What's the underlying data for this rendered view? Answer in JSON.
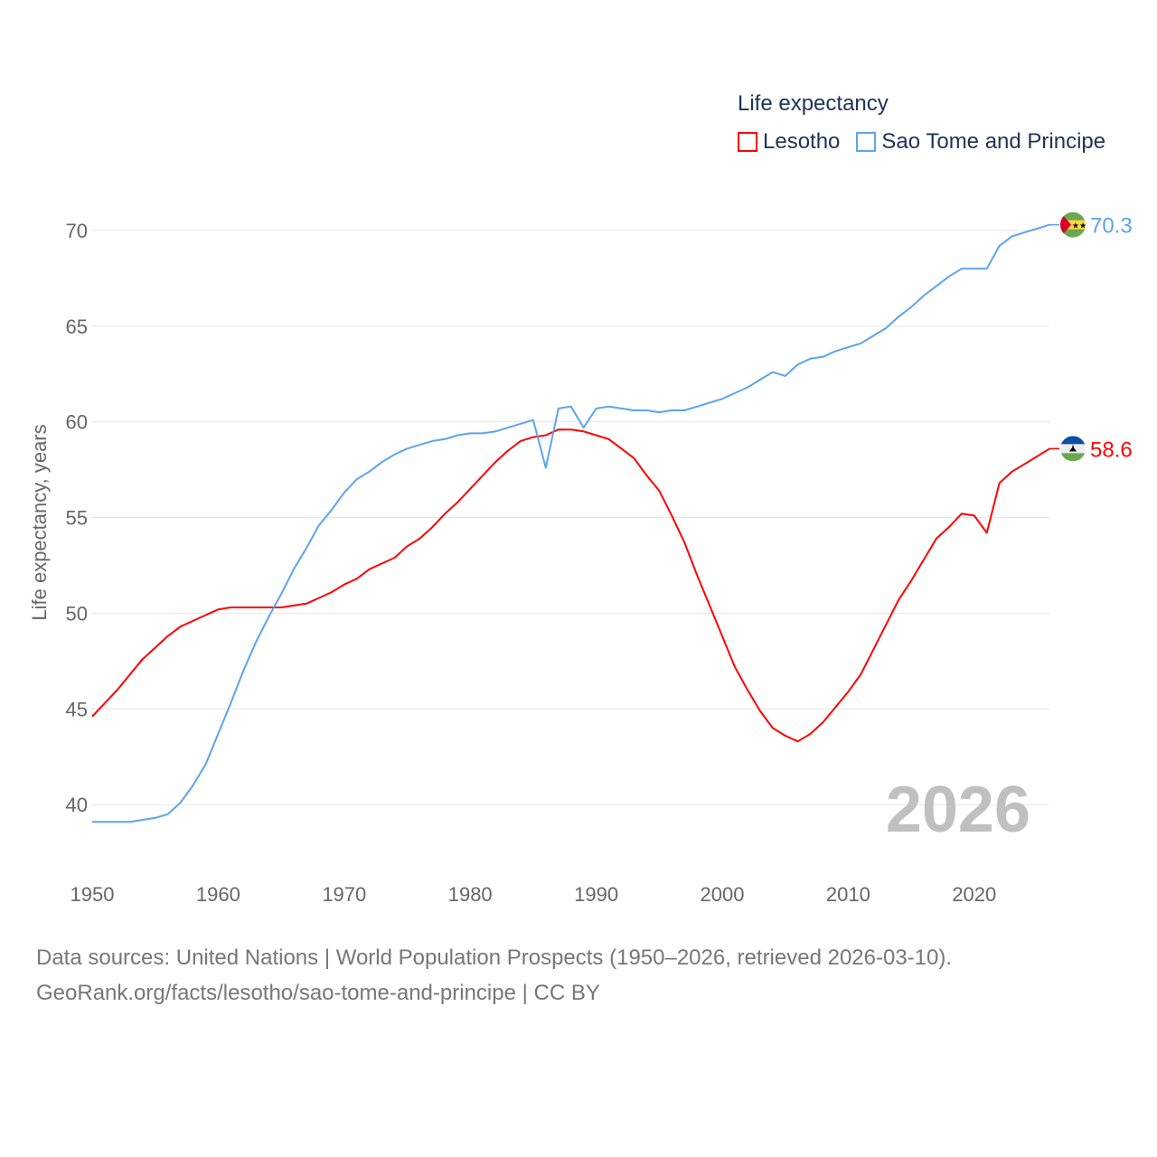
{
  "legend": {
    "title": "Life expectancy"
  },
  "source": {
    "line1": "Data sources: United Nations | World Population Prospects (1950–2026, retrieved 2026-03-10).",
    "line2": "GeoRank.org/facts/lesotho/sao-tome-and-principe | CC BY"
  },
  "chart_data": {
    "type": "line",
    "title": "Life expectancy",
    "xlabel": "",
    "ylabel": "Life expectancy, years",
    "xlim": [
      1950,
      2026
    ],
    "ylim": [
      38,
      72
    ],
    "xticks": [
      1950,
      1960,
      1970,
      1980,
      1990,
      2000,
      2010,
      2020
    ],
    "yticks": [
      40,
      45,
      50,
      55,
      60,
      65,
      70
    ],
    "grid": true,
    "legend_position": "top-right",
    "annotation": "2026",
    "x": [
      1950,
      1951,
      1952,
      1953,
      1954,
      1955,
      1956,
      1957,
      1958,
      1959,
      1960,
      1961,
      1962,
      1963,
      1964,
      1965,
      1966,
      1967,
      1968,
      1969,
      1970,
      1971,
      1972,
      1973,
      1974,
      1975,
      1976,
      1977,
      1978,
      1979,
      1980,
      1981,
      1982,
      1983,
      1984,
      1985,
      1986,
      1987,
      1988,
      1989,
      1990,
      1991,
      1992,
      1993,
      1994,
      1995,
      1996,
      1997,
      1998,
      1999,
      2000,
      2001,
      2002,
      2003,
      2004,
      2005,
      2006,
      2007,
      2008,
      2009,
      2010,
      2011,
      2012,
      2013,
      2014,
      2015,
      2016,
      2017,
      2018,
      2019,
      2020,
      2021,
      2022,
      2023,
      2024,
      2025,
      2026
    ],
    "series": [
      {
        "name": "Lesotho",
        "color": "#ff0000",
        "last_label": "58.6",
        "values": [
          44.6,
          45.3,
          46.0,
          46.8,
          47.6,
          48.2,
          48.8,
          49.3,
          49.6,
          49.9,
          50.2,
          50.3,
          50.3,
          50.3,
          50.3,
          50.3,
          50.4,
          50.5,
          50.8,
          51.1,
          51.5,
          51.8,
          52.3,
          52.6,
          52.9,
          53.5,
          53.9,
          54.5,
          55.2,
          55.8,
          56.5,
          57.2,
          57.9,
          58.5,
          59.0,
          59.2,
          59.3,
          59.6,
          59.6,
          59.5,
          59.3,
          59.1,
          58.6,
          58.1,
          57.2,
          56.4,
          55.1,
          53.7,
          52.0,
          50.4,
          48.8,
          47.2,
          46.0,
          44.9,
          44.0,
          43.6,
          43.3,
          43.7,
          44.3,
          45.1,
          45.9,
          46.8,
          48.1,
          49.4,
          50.7,
          51.7,
          52.8,
          53.9,
          54.5,
          55.2,
          55.1,
          54.2,
          56.8,
          57.4,
          57.8,
          58.2,
          58.6
        ]
      },
      {
        "name": "Sao Tome and Principe",
        "color": "#5ca4ee",
        "last_label": "70.3",
        "values": [
          39.1,
          39.1,
          39.1,
          39.1,
          39.2,
          39.3,
          39.5,
          40.1,
          41.0,
          42.1,
          43.7,
          45.3,
          47.0,
          48.5,
          49.8,
          51.0,
          52.3,
          53.4,
          54.6,
          55.4,
          56.3,
          57.0,
          57.4,
          57.9,
          58.3,
          58.6,
          58.8,
          59.0,
          59.1,
          59.3,
          59.4,
          59.4,
          59.5,
          59.7,
          59.9,
          60.1,
          57.6,
          60.7,
          60.8,
          59.7,
          60.7,
          60.8,
          60.7,
          60.6,
          60.6,
          60.5,
          60.6,
          60.6,
          60.8,
          61.0,
          61.2,
          61.5,
          61.8,
          62.2,
          62.6,
          62.4,
          63.0,
          63.3,
          63.4,
          63.7,
          63.9,
          64.1,
          64.5,
          64.9,
          65.5,
          66.0,
          66.6,
          67.1,
          67.6,
          68.0,
          68.0,
          68.0,
          69.2,
          69.7,
          69.9,
          70.1,
          70.3
        ]
      }
    ]
  }
}
